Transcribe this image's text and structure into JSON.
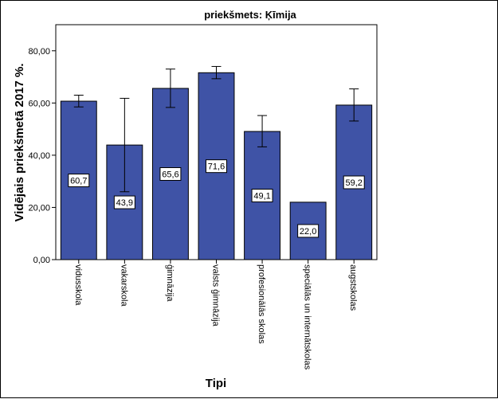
{
  "chart_data": {
    "type": "bar",
    "title": "priekšmets: Ķīmija",
    "xlabel": "Tipi",
    "ylabel": "Vidējais priekšmetā 2017 %.",
    "ylim": [
      0,
      90
    ],
    "yticks": [
      "0,00",
      "20,00",
      "40,00",
      "60,00",
      "80,00"
    ],
    "yticks_values": [
      0,
      20,
      40,
      60,
      80
    ],
    "categories": [
      "vidusskola",
      "vakarskola",
      "ģimnāzija",
      "valsts ģimnāzija",
      "profesionālās skolas",
      "speciālās un internātskolas",
      "augstskolas"
    ],
    "values": [
      60.7,
      43.9,
      65.6,
      71.6,
      49.1,
      22.0,
      59.2
    ],
    "value_labels": [
      "60,7",
      "43,9",
      "65,6",
      "71,6",
      "49,1",
      "22,0",
      "59,2"
    ],
    "error_low": [
      58.5,
      26.0,
      58.3,
      69.3,
      43.2,
      null,
      53.1
    ],
    "error_high": [
      63.0,
      61.8,
      73.0,
      74.0,
      55.2,
      null,
      65.4
    ],
    "grid": false,
    "legend": "none",
    "bar_color": "#3f53a6",
    "bar_edge_color": "#000000"
  }
}
